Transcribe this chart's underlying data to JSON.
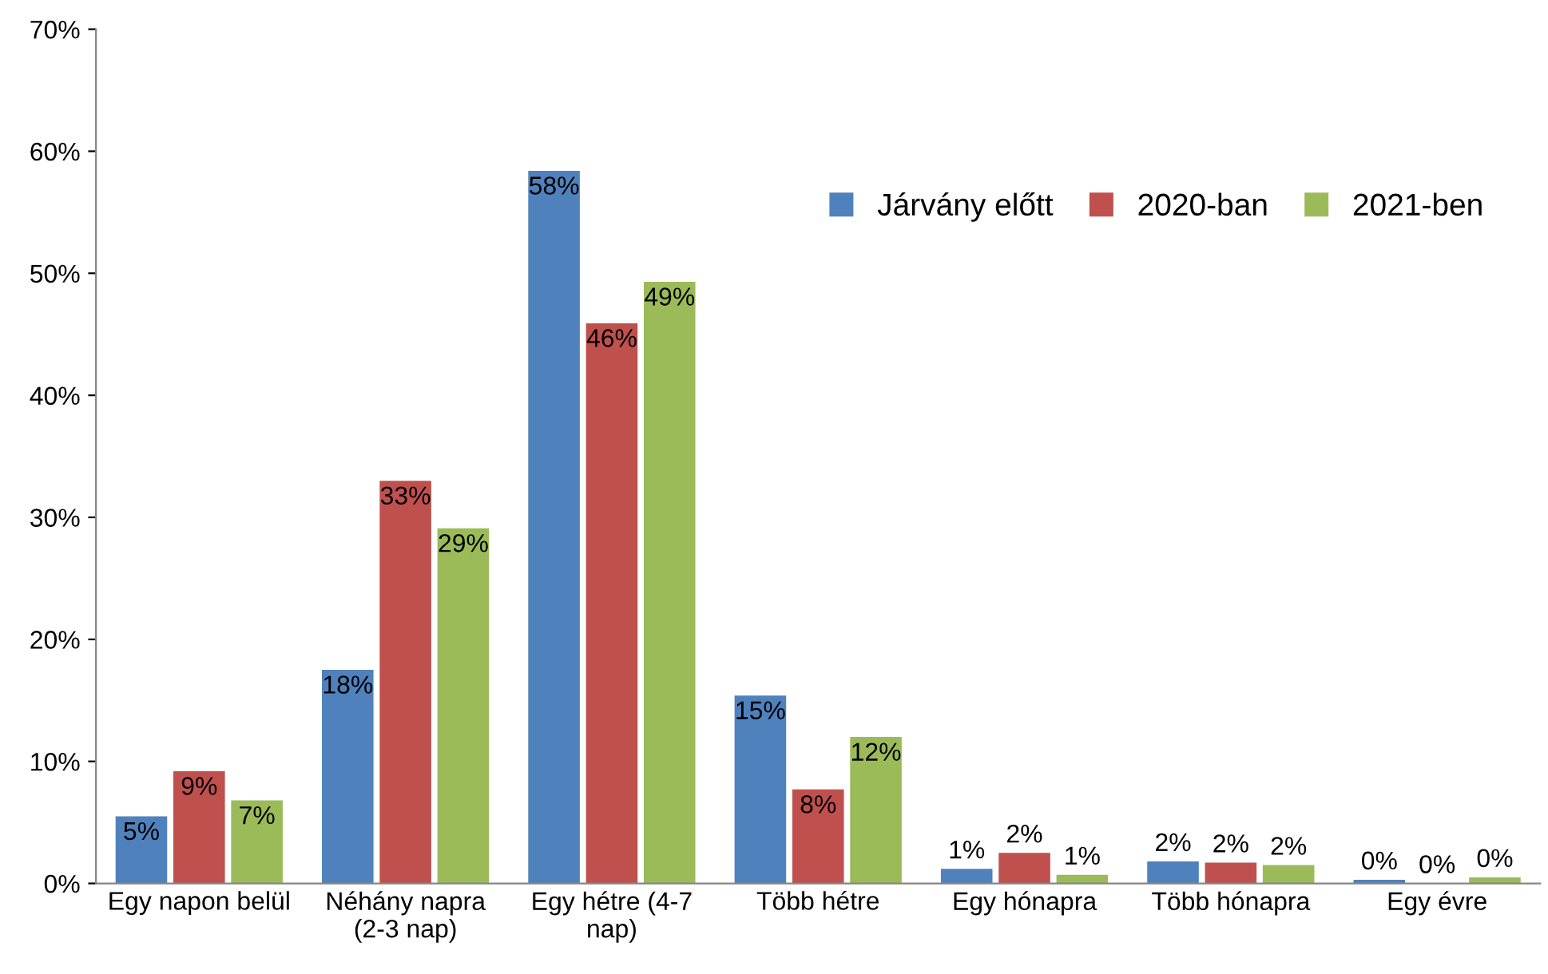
{
  "chart_data": {
    "type": "bar",
    "categories": [
      "Egy napon belül",
      "Néhány napra (2-3 nap)",
      "Egy hétre (4-7 nap)",
      "Több hétre",
      "Egy hónapra",
      "Több hónapra",
      "Egy évre"
    ],
    "series": [
      {
        "name": "Járvány előtt",
        "color": "#4f81bd",
        "values": [
          5.5,
          17.5,
          58.4,
          15.4,
          1.2,
          1.8,
          0.3
        ],
        "value_labels": [
          "5%",
          "18%",
          "58%",
          "15%",
          "1%",
          "2%",
          "0%"
        ]
      },
      {
        "name": "2020-ban",
        "color": "#c0504d",
        "values": [
          9.2,
          33.0,
          45.9,
          7.7,
          2.5,
          1.7,
          0
        ],
        "value_labels": [
          "9%",
          "33%",
          "46%",
          "8%",
          "2%",
          "2%",
          "0%"
        ]
      },
      {
        "name": "2021-ben",
        "color": "#9bbb59",
        "values": [
          6.8,
          29.1,
          49.3,
          12.0,
          0.7,
          1.5,
          0.5
        ],
        "value_labels": [
          "7%",
          "29%",
          "49%",
          "12%",
          "1%",
          "2%",
          "0%"
        ]
      }
    ],
    "ylim": [
      0,
      70
    ],
    "yticks": [
      {
        "value": 0,
        "label": "0%"
      },
      {
        "value": 10,
        "label": "10%"
      },
      {
        "value": 20,
        "label": "20%"
      },
      {
        "value": 30,
        "label": "30%"
      },
      {
        "value": 40,
        "label": "40%"
      },
      {
        "value": 50,
        "label": "50%"
      },
      {
        "value": 60,
        "label": "60%"
      },
      {
        "value": 70,
        "label": "70%"
      }
    ],
    "grid": false,
    "legend": "top right"
  }
}
